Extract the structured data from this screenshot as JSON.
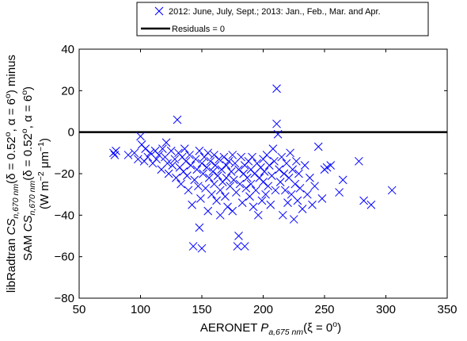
{
  "chart_data": {
    "type": "scatter",
    "xlim": [
      50,
      350
    ],
    "ylim": [
      -80,
      40
    ],
    "xticks": [
      50,
      100,
      150,
      200,
      250,
      300,
      350
    ],
    "yticks": [
      -80,
      -60,
      -40,
      -20,
      0,
      20,
      40
    ],
    "grid": false,
    "legend_position": "top",
    "xlabel": {
      "prefix": "AERONET ",
      "var": "P",
      "sub": "a,675 nm",
      "tail": "(ξ = 0",
      "sup": "o",
      "close": ")"
    },
    "ylabel": {
      "line1_a": "libRadtran ",
      "line1_var": "CS",
      "line1_sub": "n,670 nm",
      "line1_b": "(δ = 0.52",
      "line1_sup1": "o",
      "line1_c": ", α = 6",
      "line1_sup2": "o",
      "line1_d": ") minus",
      "line2_a": "SAM ",
      "line2_var": "CS",
      "line2_sub": "n,670 nm",
      "line2_b": "(δ = 0.52",
      "line2_sup1": "o",
      "line2_c": ", α = 6",
      "line2_sup2": "o",
      "line2_d": ")",
      "line3_a": "(W m",
      "line3_sup1": "−2",
      "line3_b": " μm",
      "line3_sup2": "−1",
      "line3_c": ")"
    },
    "series": [
      {
        "name": "2012: June, July, Sept.; 2013: Jan., Feb., Mar. and Apr.",
        "marker": "x",
        "color": "#0000ff",
        "points": [
          [
            78,
            -10
          ],
          [
            80,
            -9
          ],
          [
            79,
            -11
          ],
          [
            90,
            -11
          ],
          [
            95,
            -10
          ],
          [
            98,
            -13
          ],
          [
            100,
            -2
          ],
          [
            101,
            -6
          ],
          [
            103,
            -14
          ],
          [
            104,
            -8
          ],
          [
            106,
            -12
          ],
          [
            108,
            -10
          ],
          [
            110,
            -15
          ],
          [
            112,
            -9
          ],
          [
            113,
            -13
          ],
          [
            115,
            -11
          ],
          [
            117,
            -18
          ],
          [
            118,
            -8
          ],
          [
            120,
            -12
          ],
          [
            121,
            -5
          ],
          [
            122,
            -15
          ],
          [
            123,
            -20
          ],
          [
            125,
            -9
          ],
          [
            126,
            -16
          ],
          [
            128,
            -13
          ],
          [
            129,
            -22
          ],
          [
            130,
            6
          ],
          [
            131,
            -10
          ],
          [
            132,
            -17
          ],
          [
            133,
            -25
          ],
          [
            134,
            -12
          ],
          [
            135,
            -19
          ],
          [
            136,
            -8
          ],
          [
            137,
            -14
          ],
          [
            138,
            -21
          ],
          [
            139,
            -28
          ],
          [
            140,
            -11
          ],
          [
            141,
            -16
          ],
          [
            142,
            -35
          ],
          [
            143,
            -55
          ],
          [
            144,
            -23
          ],
          [
            145,
            -13
          ],
          [
            146,
            -18
          ],
          [
            147,
            -26
          ],
          [
            148,
            -46
          ],
          [
            148,
            -9
          ],
          [
            149,
            -32
          ],
          [
            150,
            -15
          ],
          [
            150,
            -56
          ],
          [
            151,
            -20
          ],
          [
            152,
            -12
          ],
          [
            153,
            -27
          ],
          [
            154,
            -17
          ],
          [
            155,
            -38
          ],
          [
            155,
            -10
          ],
          [
            156,
            -22
          ],
          [
            157,
            -14
          ],
          [
            158,
            -30
          ],
          [
            159,
            -19
          ],
          [
            160,
            -25
          ],
          [
            160,
            -11
          ],
          [
            161,
            -16
          ],
          [
            162,
            -33
          ],
          [
            163,
            -21
          ],
          [
            164,
            -13
          ],
          [
            165,
            -28
          ],
          [
            165,
            -40
          ],
          [
            166,
            -18
          ],
          [
            167,
            -24
          ],
          [
            168,
            -12
          ],
          [
            169,
            -31
          ],
          [
            170,
            -16
          ],
          [
            170,
            -22
          ],
          [
            171,
            -36
          ],
          [
            172,
            -14
          ],
          [
            173,
            -26
          ],
          [
            174,
            -19
          ],
          [
            175,
            -11
          ],
          [
            175,
            -38
          ],
          [
            176,
            -23
          ],
          [
            177,
            -15
          ],
          [
            178,
            -29
          ],
          [
            179,
            -55
          ],
          [
            180,
            -18
          ],
          [
            180,
            -50
          ],
          [
            181,
            -25
          ],
          [
            182,
            -12
          ],
          [
            183,
            -34
          ],
          [
            184,
            -20
          ],
          [
            185,
            -16
          ],
          [
            185,
            -55
          ],
          [
            186,
            -27
          ],
          [
            187,
            -22
          ],
          [
            188,
            -14
          ],
          [
            189,
            -31
          ],
          [
            190,
            -18
          ],
          [
            190,
            -25
          ],
          [
            191,
            -12
          ],
          [
            192,
            -36
          ],
          [
            193,
            -20
          ],
          [
            194,
            -28
          ],
          [
            195,
            -15
          ],
          [
            196,
            -40
          ],
          [
            197,
            -22
          ],
          [
            198,
            -17
          ],
          [
            199,
            -33
          ],
          [
            200,
            -13
          ],
          [
            200,
            -24
          ],
          [
            201,
            -19
          ],
          [
            202,
            -30
          ],
          [
            203,
            -11
          ],
          [
            204,
            -26
          ],
          [
            205,
            -16
          ],
          [
            206,
            -35
          ],
          [
            207,
            -21
          ],
          [
            208,
            -8
          ],
          [
            209,
            -14
          ],
          [
            210,
            -28
          ],
          [
            211,
            21
          ],
          [
            211,
            4
          ],
          [
            212,
            -1
          ],
          [
            213,
            -18
          ],
          [
            214,
            -24
          ],
          [
            215,
            -12
          ],
          [
            216,
            -40
          ],
          [
            217,
            -20
          ],
          [
            218,
            -28
          ],
          [
            219,
            -15
          ],
          [
            220,
            -34
          ],
          [
            221,
            -22
          ],
          [
            222,
            -10
          ],
          [
            223,
            -30
          ],
          [
            224,
            -18
          ],
          [
            225,
            -42
          ],
          [
            226,
            -25
          ],
          [
            227,
            -14
          ],
          [
            228,
            -33
          ],
          [
            229,
            -20
          ],
          [
            230,
            -27
          ],
          [
            232,
            -37
          ],
          [
            234,
            -16
          ],
          [
            236,
            -30
          ],
          [
            238,
            -22
          ],
          [
            240,
            -35
          ],
          [
            242,
            -26
          ],
          [
            245,
            -7
          ],
          [
            248,
            -32
          ],
          [
            250,
            -18
          ],
          [
            252,
            -17
          ],
          [
            255,
            -16
          ],
          [
            262,
            -29
          ],
          [
            265,
            -23
          ],
          [
            278,
            -14
          ],
          [
            282,
            -33
          ],
          [
            288,
            -35
          ],
          [
            305,
            -28
          ]
        ]
      },
      {
        "name": "Residuals = 0",
        "type": "line",
        "color": "#000000",
        "y": 0
      }
    ]
  }
}
